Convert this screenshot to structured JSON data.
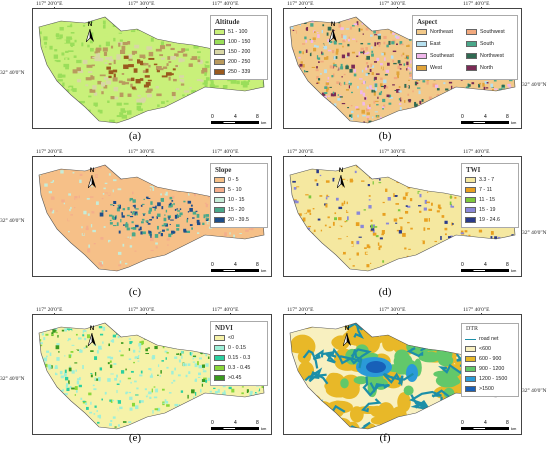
{
  "panels": [
    {
      "id": "a",
      "caption": "(a)",
      "coords_top": [
        "117° 20'0\"E",
        "117° 30'0\"E",
        "117° 40'0\"E"
      ],
      "coord_left": "32° 40'0\"N",
      "coord_right": "",
      "legend": {
        "title": "Altitude",
        "items": [
          {
            "label": "51 - 100",
            "color": "#c9f07a"
          },
          {
            "label": "100 - 150",
            "color": "#9ade5a"
          },
          {
            "label": "150 - 200",
            "color": "#d8d7a6"
          },
          {
            "label": "200 - 250",
            "color": "#b99a5e"
          },
          {
            "label": "250 - 339",
            "color": "#9a5a1e"
          }
        ]
      },
      "scale": {
        "labels": [
          "0",
          "4",
          "8"
        ],
        "unit": "km"
      }
    },
    {
      "id": "b",
      "caption": "(b)",
      "coords_top": [
        "117° 20'0\"E",
        "117° 30'0\"E",
        "117° 40'0\"E"
      ],
      "coord_left": "",
      "coord_right": "32° 40'0\"N",
      "legend": {
        "title": "Aspect",
        "items": [
          {
            "label": "Northeast",
            "color": "#f2c98a"
          },
          {
            "label": "Southwest",
            "color": "#f2a97e"
          },
          {
            "label": "East",
            "color": "#b6e0ef"
          },
          {
            "label": "South",
            "color": "#4aa88a"
          },
          {
            "label": "Southeast",
            "color": "#f0b8ec"
          },
          {
            "label": "Northwest",
            "color": "#2f6a52"
          },
          {
            "label": "West",
            "color": "#e1a43a"
          },
          {
            "label": "North",
            "color": "#7a2a55"
          }
        ]
      },
      "scale": {
        "labels": [
          "0",
          "4",
          "8"
        ],
        "unit": "km"
      }
    },
    {
      "id": "c",
      "caption": "(c)",
      "coords_top": [
        "117° 20'0\"E",
        "117° 30'0\"E",
        "117° 40'0\"E"
      ],
      "coord_left": "32° 40'0\"N",
      "coord_right": "",
      "legend": {
        "title": "Slope",
        "items": [
          {
            "label": "0 - 5",
            "color": "#f6c088"
          },
          {
            "label": "5 - 10",
            "color": "#f4ae8c"
          },
          {
            "label": "10 - 15",
            "color": "#c6ecd8"
          },
          {
            "label": "15 - 20",
            "color": "#4aa88a"
          },
          {
            "label": "20 - 39.5",
            "color": "#1e4e8a"
          }
        ]
      },
      "scale": {
        "labels": [
          "0",
          "4",
          "8"
        ],
        "unit": "km"
      }
    },
    {
      "id": "d",
      "caption": "(d)",
      "coords_top": [
        "117° 20'0\"E",
        "117° 30'0\"E",
        "117° 40'0\"E"
      ],
      "coord_left": "",
      "coord_right": "32° 40'0\"N",
      "legend": {
        "title": "TWI",
        "items": [
          {
            "label": "3.3 - 7",
            "color": "#f5e8a0"
          },
          {
            "label": "7 - 11",
            "color": "#e8a020"
          },
          {
            "label": "11 - 15",
            "color": "#7ec83c"
          },
          {
            "label": "15 - 19",
            "color": "#8a88d8"
          },
          {
            "label": "19 - 24.6",
            "color": "#2a3a8a"
          }
        ]
      },
      "scale": {
        "labels": [
          "0",
          "4",
          "8"
        ],
        "unit": "km"
      }
    },
    {
      "id": "e",
      "caption": "(e)",
      "coords_top": [
        "117° 20'0\"E",
        "117° 30'0\"E",
        "117° 40'0\"E"
      ],
      "coord_left": "32° 40'0\"N",
      "coord_right": "",
      "legend": {
        "title": "NDVI",
        "items": [
          {
            "label": "<0",
            "color": "#f6f2a8"
          },
          {
            "label": "0 - 0.15",
            "color": "#9ef0d8"
          },
          {
            "label": "0.15 - 0.3",
            "color": "#2cd0a0"
          },
          {
            "label": "0.3 - 0.45",
            "color": "#8ad83a"
          },
          {
            "label": ">0.45",
            "color": "#3a9a1e"
          }
        ]
      },
      "scale": {
        "labels": [
          "0",
          "4",
          "8"
        ],
        "unit": "km"
      }
    },
    {
      "id": "f",
      "caption": "(f)",
      "coords_top": [
        "117° 20'0\"E",
        "117° 30'0\"E",
        "117° 40'0\"E"
      ],
      "coord_left": "",
      "coord_right": "32° 40'0\"N",
      "legend": {
        "title": "DTR",
        "road_label": "road net",
        "road_color": "#1c8fa8",
        "items": [
          {
            "label": "<600",
            "color": "#f8f0c0"
          },
          {
            "label": "600 - 900",
            "color": "#e8b828"
          },
          {
            "label": "900 - 1200",
            "color": "#62c86a"
          },
          {
            "label": "1200 - 1500",
            "color": "#2a9ad8"
          },
          {
            "label": ">1500",
            "color": "#1860b8"
          }
        ]
      },
      "scale": {
        "labels": [
          "0",
          "4",
          "8"
        ],
        "unit": "km"
      }
    }
  ]
}
